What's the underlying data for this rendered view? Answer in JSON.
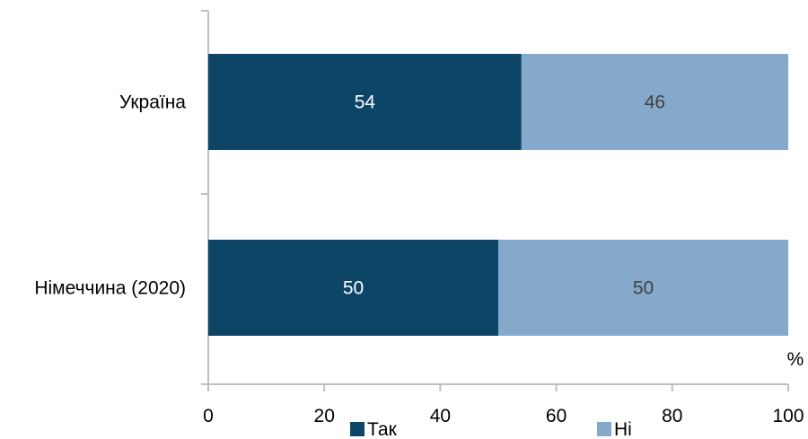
{
  "colors": {
    "series_1": "#0d4566",
    "series_2": "#85a9cb",
    "axis": "#bfbfbf",
    "text": "#000000",
    "label_light": "#ffffff",
    "label_dark": "#404040",
    "title": "#1f5c99"
  },
  "chart_data": {
    "type": "bar",
    "orientation": "horizontal",
    "stacked": true,
    "title": "",
    "categories": [
      "Україна",
      "Німеччина (2020)"
    ],
    "series": [
      {
        "name": "Так",
        "values": [
          54,
          50
        ]
      },
      {
        "name": "Ні",
        "values": [
          46,
          50
        ]
      }
    ],
    "xlim": [
      0,
      100
    ],
    "xticks": [
      "0",
      "20",
      "40",
      "60",
      "80",
      "100"
    ],
    "unit_label": "%",
    "grid": false,
    "legend_position": "bottom"
  }
}
